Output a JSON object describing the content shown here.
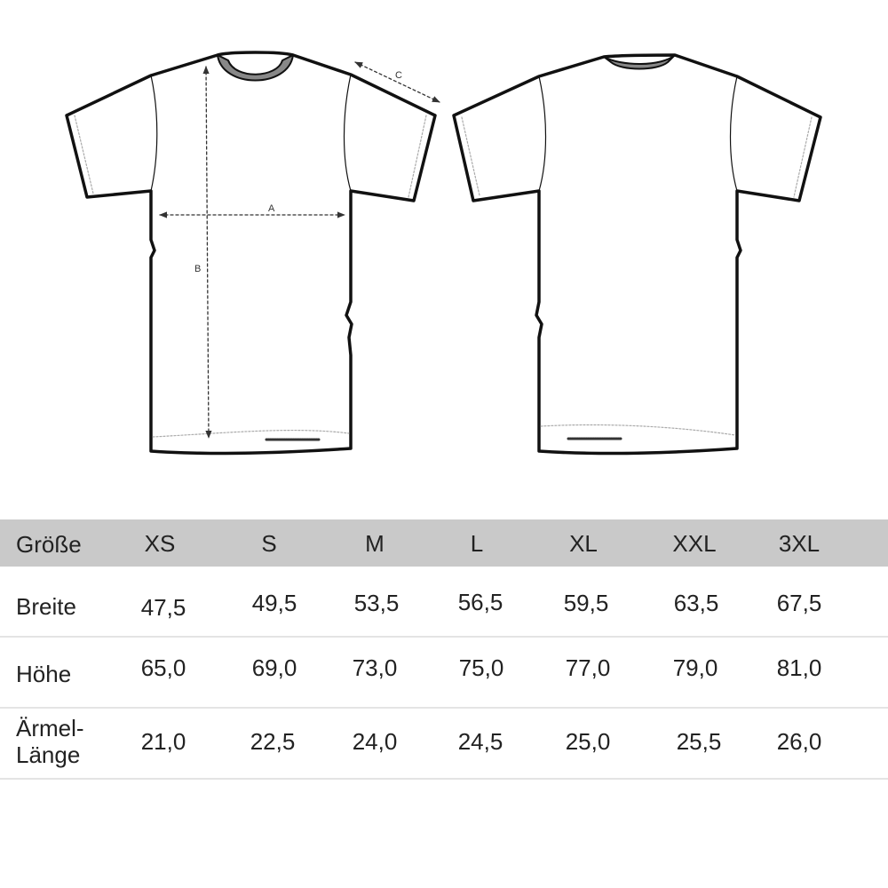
{
  "diagram": {
    "labels": {
      "width": "A",
      "height": "B",
      "sleeve": "C"
    },
    "views": [
      "front",
      "back"
    ]
  },
  "table": {
    "header_label": "Größe",
    "sizes": [
      "XS",
      "S",
      "M",
      "L",
      "XL",
      "XXL",
      "3XL"
    ],
    "rows": [
      {
        "label": "Breite",
        "values": [
          "47,5",
          "49,5",
          "53,5",
          "56,5",
          "59,5",
          "63,5",
          "67,5"
        ]
      },
      {
        "label": "Höhe",
        "values": [
          "65,0",
          "69,0",
          "73,0",
          "75,0",
          "77,0",
          "79,0",
          "81,0"
        ]
      },
      {
        "label_line1": "Ärmel-",
        "label_line2": "Länge",
        "values": [
          "21,0",
          "22,5",
          "24,0",
          "24,5",
          "25,0",
          "25,5",
          "26,0"
        ]
      }
    ]
  }
}
